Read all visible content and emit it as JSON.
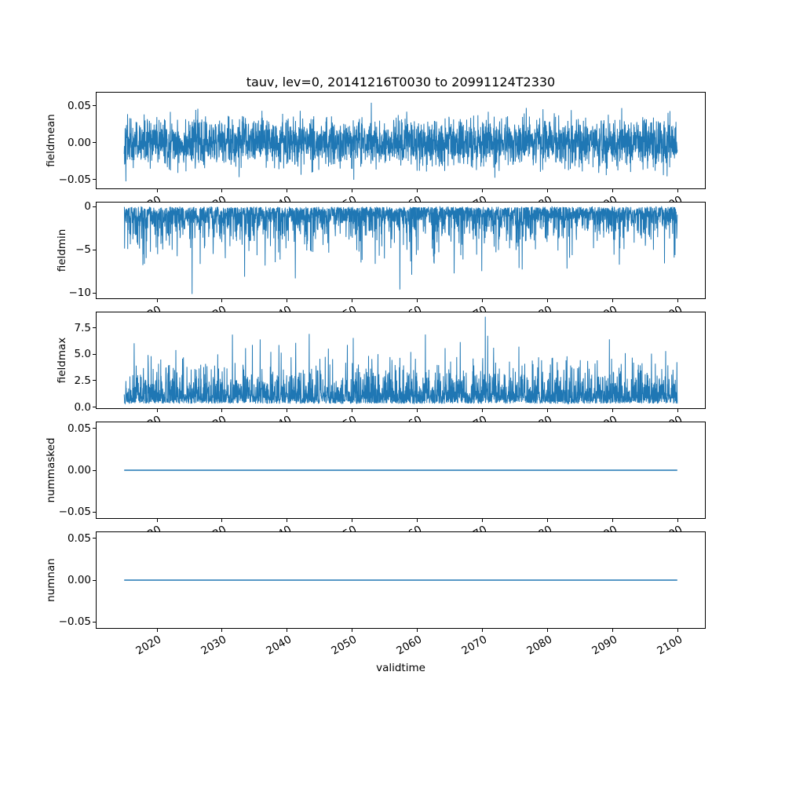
{
  "figure": {
    "title": "tauv, lev=0, 20141216T0030 to 20991124T2330",
    "xlabel": "validtime",
    "line_color": "#1f77b4",
    "background": "#ffffff",
    "text_color": "#000000"
  },
  "chart_data": {
    "type": "line",
    "title": "tauv, lev=0, 20141216T0030 to 20991124T2330",
    "xlabel": "validtime",
    "grid": false,
    "legend": false,
    "x_axis": {
      "label": "validtime",
      "ticks": [
        2020,
        2030,
        2040,
        2050,
        2060,
        2070,
        2080,
        2090,
        2100
      ],
      "tick_labels": [
        "2020",
        "2030",
        "2040",
        "2050",
        "2060",
        "2070",
        "2080",
        "2090",
        "2100"
      ],
      "lim": [
        2010.71,
        2104.15
      ],
      "data_range": [
        2014.96,
        2099.9
      ],
      "tick_rotation_deg": 30
    },
    "subplots": [
      {
        "ylabel": "fieldmean",
        "ylim": [
          -0.062,
          0.068
        ],
        "yticks": [
          0.05,
          0.0,
          -0.05
        ],
        "ytick_labels": [
          "0.05",
          "0.00",
          "−0.05"
        ],
        "series_desc": "dense noisy time series centered on 0, typical band ±0.03, extremes from −0.055 to 0.063",
        "gen": {
          "kind": "gaussian",
          "mean": 0,
          "std": 0.016,
          "clip": [
            -0.0585,
            0.0635
          ],
          "seed": 42,
          "points": 3000
        }
      },
      {
        "ylabel": "fieldmin",
        "ylim": [
          -10.6,
          0.48
        ],
        "yticks": [
          0,
          -5,
          -10
        ],
        "ytick_labels": [
          "0",
          "−5",
          "−10"
        ],
        "series_desc": "dense noisy series hanging from ~0 down to about −4 typically, with spikes reaching −10.1",
        "gen": {
          "kind": "negexp",
          "offset": -0.02,
          "scale": 1.28,
          "clip": [
            -10.1,
            -0.01
          ],
          "seed": 7,
          "points": 3000
        }
      },
      {
        "ylabel": "fieldmax",
        "ylim": [
          -0.11,
          8.96
        ],
        "yticks": [
          7.5,
          5.0,
          2.5,
          0.0
        ],
        "ytick_labels": [
          "7.5",
          "5.0",
          "2.5",
          "0.0"
        ],
        "series_desc": "dense noisy series rising from ~0.3 up to about 3 typically, with spikes reaching 8.55",
        "gen": {
          "kind": "posexp",
          "base": 0.32,
          "scale": 1.05,
          "clip": [
            0.3,
            8.55
          ],
          "seed": 13,
          "points": 3000
        }
      },
      {
        "ylabel": "nummasked",
        "ylim": [
          -0.0574,
          0.0574
        ],
        "yticks": [
          0.05,
          0.0,
          -0.05
        ],
        "ytick_labels": [
          "0.05",
          "0.00",
          "−0.05"
        ],
        "series_desc": "constant line at 0 across the whole time range",
        "gen": {
          "kind": "flat",
          "value": 0,
          "seed": 1,
          "points": 2
        }
      },
      {
        "ylabel": "numnan",
        "ylim": [
          -0.0574,
          0.0574
        ],
        "yticks": [
          0.05,
          0.0,
          -0.05
        ],
        "ytick_labels": [
          "0.05",
          "0.00",
          "−0.05"
        ],
        "series_desc": "constant line at 0 across the whole time range",
        "gen": {
          "kind": "flat",
          "value": 0,
          "seed": 2,
          "points": 2
        }
      }
    ]
  }
}
